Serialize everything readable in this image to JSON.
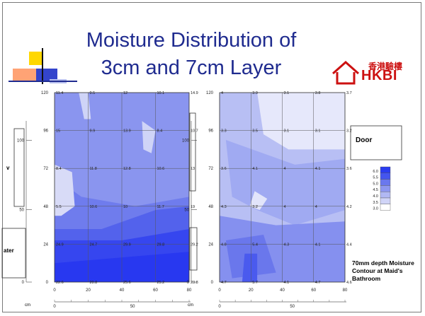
{
  "slide": {
    "title_line1": "Moisture Distribution of",
    "title_line2": "3cm and 7cm Layer",
    "logo_cn": "香港驗樓",
    "logo_en": "HKBI",
    "door_label": "Door",
    "caption": "70mm depth Moisture Contour at Maid's Bathroom",
    "left_label_upper": "v",
    "left_label_lower": "ater",
    "cm_label": "cm"
  },
  "left_plot": {
    "y_ticks": [
      "120",
      "96",
      "72",
      "48",
      "24",
      "0"
    ],
    "x_ticks": [
      "0",
      "20",
      "40",
      "60",
      "80"
    ],
    "ruler_left_ticks": [
      "100",
      "50",
      "0"
    ],
    "ruler_bottom_ticks": [
      "0",
      "50"
    ],
    "grid_values": [
      [
        "11.4",
        "9.5",
        "12",
        "10.1",
        "14.9"
      ],
      [
        "15",
        "9.9",
        "13.9",
        "8.4",
        "10.7"
      ],
      [
        "8.4",
        "11.8",
        "12.8",
        "10.6",
        "13"
      ],
      [
        "5.5",
        "10.6",
        "10",
        "11.7",
        "19"
      ],
      [
        "24.9",
        "24.7",
        "29.9",
        "29.8",
        "29.2"
      ],
      [
        "22.6",
        "20.8",
        "25.6",
        "25.2",
        "23.8"
      ]
    ]
  },
  "right_plot": {
    "y_ticks": [
      "120",
      "96",
      "72",
      "48",
      "24",
      "0"
    ],
    "x_ticks": [
      "0",
      "20",
      "40",
      "60",
      "80"
    ],
    "ruler_left_ticks": [
      "100",
      "50",
      "0"
    ],
    "ruler_bottom_ticks": [
      "0",
      "50"
    ],
    "grid_values": [
      [
        "4",
        "3.9",
        "3.1",
        "3.8",
        "3.7"
      ],
      [
        "3.3",
        "3.5",
        "3.1",
        "3.1",
        "3.2"
      ],
      [
        "3.6",
        "4.1",
        "4",
        "4.1",
        "3.6"
      ],
      [
        "4.3",
        "3.2",
        "4",
        "4",
        "4.2"
      ],
      [
        "4.8",
        "5.4",
        "4.3",
        "4.1",
        "4.4"
      ],
      [
        "4.7",
        "5.7",
        "4.1",
        "4.7",
        "4.6"
      ]
    ]
  },
  "legend": {
    "levels": [
      "6.0",
      "5.5",
      "5.0",
      "4.5",
      "4.0",
      "3.5",
      "3.0"
    ],
    "colors": [
      "#2a3cf0",
      "#4455ee",
      "#6a78ee",
      "#8d97f0",
      "#b1b8f3",
      "#d0d4f7",
      "#ffffff"
    ]
  },
  "colors": {
    "title": "#1f2b8f",
    "brand_red": "#cc1111",
    "contour_dark": "#2838f0",
    "contour_mid": "#8e98f0",
    "contour_light": "#e2e5fa"
  }
}
